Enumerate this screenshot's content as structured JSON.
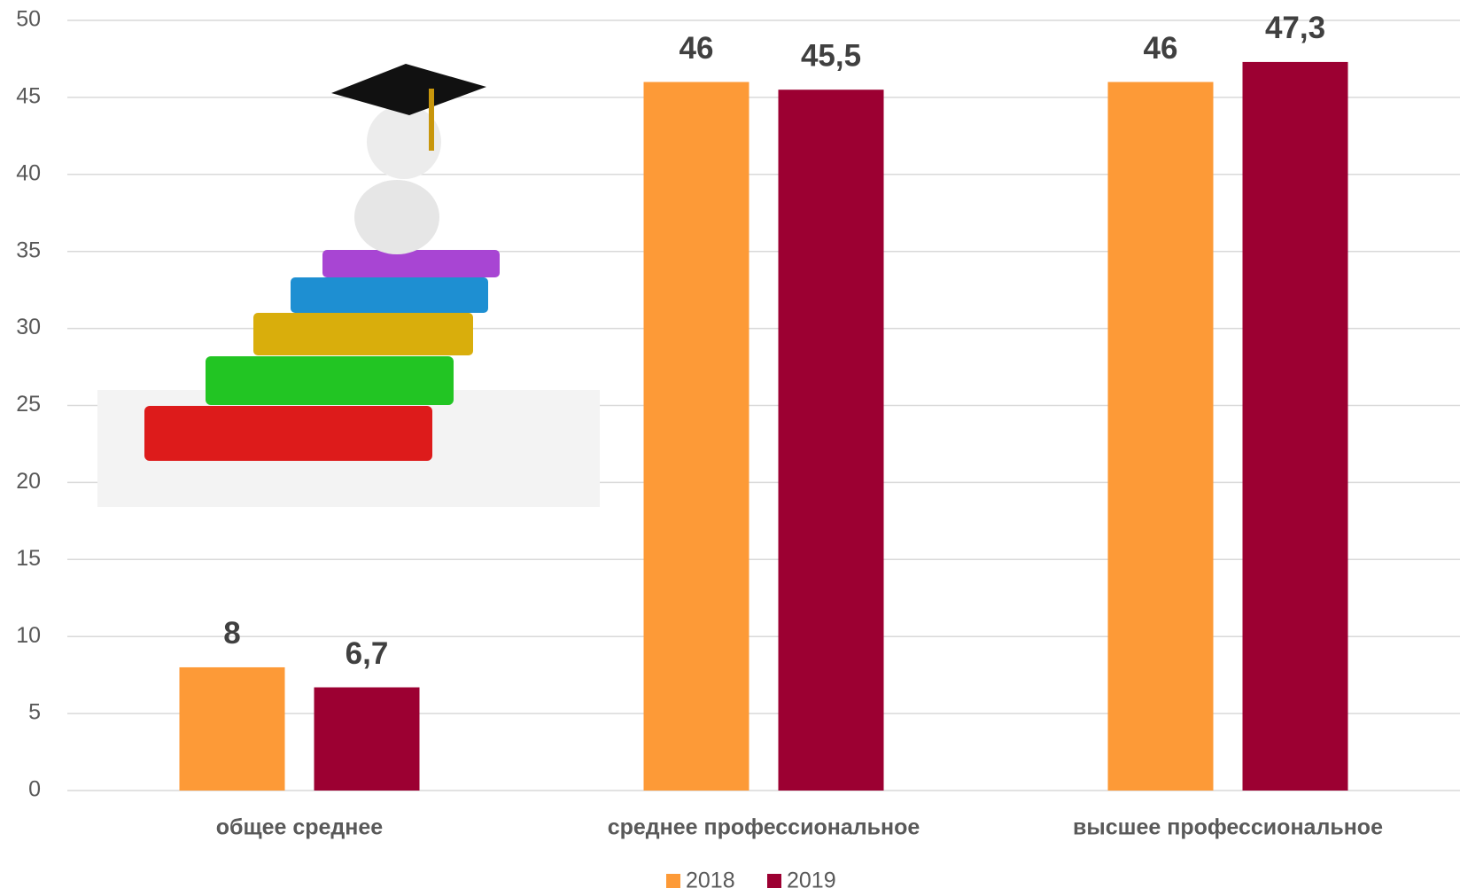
{
  "chart_data": {
    "type": "bar",
    "categories": [
      "общее среднее",
      "среднее профессиональное",
      "высшее профессиональное"
    ],
    "series": [
      {
        "name": "2018",
        "color": "#fd9a37",
        "values": [
          8,
          46,
          46
        ],
        "value_labels": [
          "8",
          "46",
          "46"
        ]
      },
      {
        "name": "2019",
        "color": "#9c0032",
        "values": [
          6.7,
          45.5,
          47.3
        ],
        "value_labels": [
          "6,7",
          "45,5",
          "47,3"
        ]
      }
    ],
    "ylim": [
      0,
      50
    ],
    "yticks": [
      0,
      5,
      10,
      15,
      20,
      25,
      30,
      35,
      40,
      45,
      50
    ],
    "grid": true,
    "legend": "bottom"
  }
}
